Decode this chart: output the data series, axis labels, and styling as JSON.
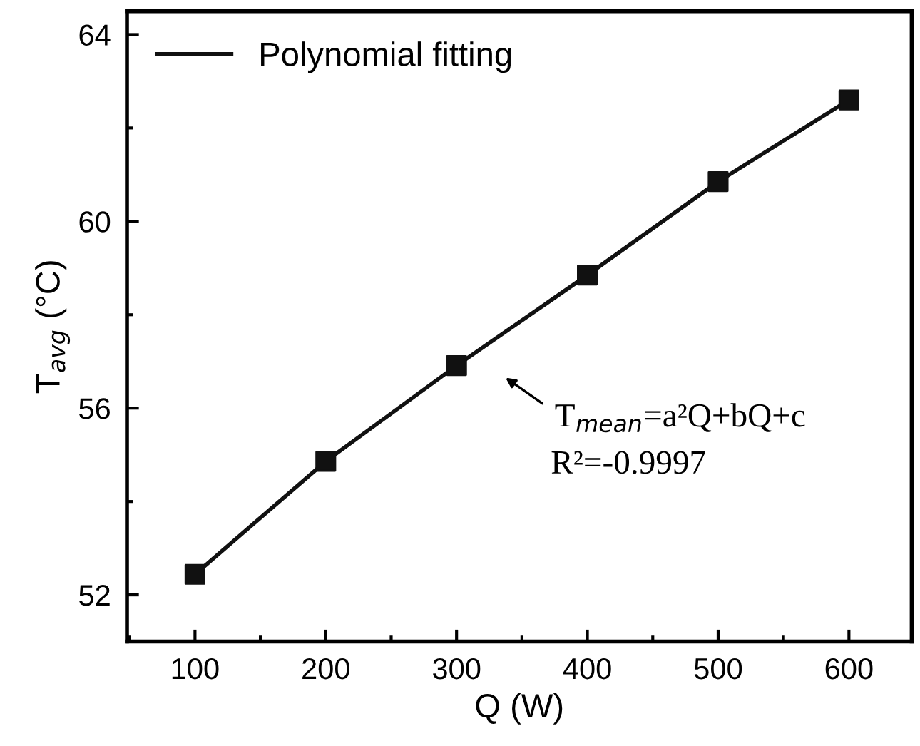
{
  "chart_data": {
    "type": "line",
    "xlabel": "Q (W)",
    "ylabel": "T$_{avg}$ (°C)",
    "x": [
      100,
      200,
      300,
      400,
      500,
      600
    ],
    "series": [
      {
        "type": "scatter",
        "color": "#111111",
        "marker": "square",
        "values": [
          52.44,
          54.86,
          56.91,
          58.85,
          60.85,
          62.6
        ]
      },
      {
        "name": "Polynomial fitting",
        "color": "#111111",
        "marker": "none",
        "line_style": "solid",
        "values": [
          52.44,
          54.86,
          56.91,
          58.85,
          60.85,
          62.6
        ]
      }
    ],
    "xlim": [
      48,
      648
    ],
    "ylim": [
      51,
      64.5
    ],
    "xticks": [
      100,
      200,
      300,
      400,
      500,
      600
    ],
    "yticks": [
      52,
      56,
      60,
      64
    ],
    "grid": false,
    "legend": "top left",
    "annotations": [
      "T$_{mean}$=a²Q+bQ+c",
      "R²=-0.9997"
    ]
  }
}
